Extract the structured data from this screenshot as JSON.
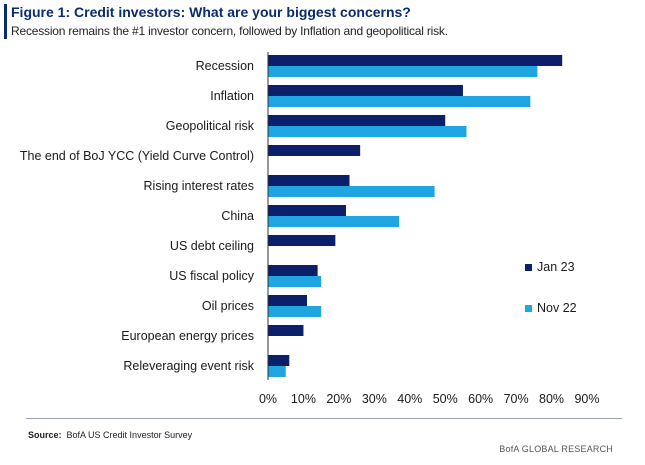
{
  "figure": {
    "title": "Figure 1: Credit investors: What are your biggest concerns?",
    "subtitle": "Recession remains the #1 investor concern, followed by Inflation and geopolitical risk.",
    "source_label": "Source:",
    "source_text": "BofA US Credit Investor Survey",
    "brand": "BofA GLOBAL RESEARCH"
  },
  "colors": {
    "title": "#0a2b6e",
    "jan23": "#0b1f6b",
    "nov22": "#1fa5df",
    "axis": "#333333"
  },
  "chart_data": {
    "type": "bar",
    "orientation": "horizontal",
    "categories": [
      "Recession",
      "Inflation",
      "Geopolitical risk",
      "The end of BoJ YCC (Yield Curve Control)",
      "Rising interest rates",
      "China",
      "US debt ceiling",
      "US fiscal policy",
      "Oil prices",
      "European energy prices",
      "Releveraging event risk"
    ],
    "series": [
      {
        "name": "Jan 23",
        "color": "#0b1f6b",
        "values": [
          83,
          55,
          50,
          26,
          23,
          22,
          19,
          14,
          11,
          10,
          6
        ]
      },
      {
        "name": "Nov 22",
        "color": "#1fa5df",
        "values": [
          76,
          74,
          56,
          null,
          47,
          37,
          null,
          15,
          15,
          null,
          5
        ]
      }
    ],
    "xlim": [
      0,
      90
    ],
    "xticks": [
      0,
      10,
      20,
      30,
      40,
      50,
      60,
      70,
      80,
      90
    ],
    "xtick_labels": [
      "0%",
      "10%",
      "20%",
      "30%",
      "40%",
      "50%",
      "60%",
      "70%",
      "80%",
      "90%"
    ],
    "grid": false,
    "legend_position": "right"
  }
}
